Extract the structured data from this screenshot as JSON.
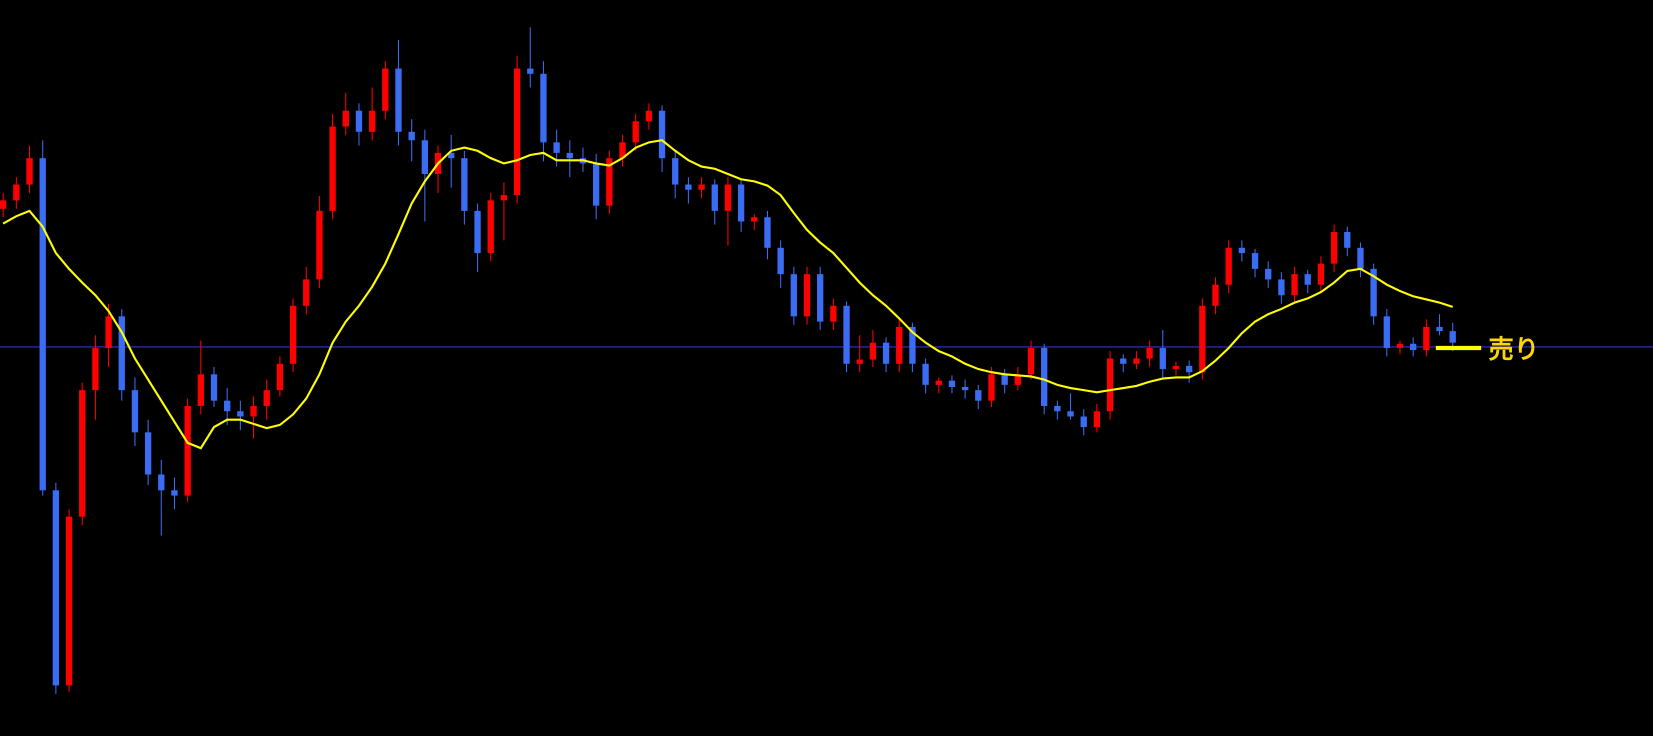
{
  "chart_data": {
    "type": "candlestick",
    "ylim": [
      0,
      698
    ],
    "up_color": "#ff0000",
    "down_color": "#3a6cf4",
    "ma_color": "#ffff00",
    "hline_color": "#3333cc",
    "hline": 369,
    "annotation": "売り",
    "ohlc": [
      [
        500,
        515,
        492,
        508
      ],
      [
        508,
        530,
        500,
        523
      ],
      [
        523,
        560,
        515,
        548
      ],
      [
        548,
        565,
        228,
        233
      ],
      [
        233,
        240,
        40,
        48
      ],
      [
        48,
        215,
        42,
        208
      ],
      [
        208,
        335,
        200,
        328
      ],
      [
        328,
        380,
        300,
        368
      ],
      [
        368,
        410,
        350,
        398
      ],
      [
        398,
        405,
        318,
        328
      ],
      [
        328,
        340,
        275,
        288
      ],
      [
        288,
        300,
        238,
        248
      ],
      [
        248,
        262,
        190,
        233
      ],
      [
        233,
        245,
        215,
        228
      ],
      [
        228,
        320,
        222,
        313
      ],
      [
        313,
        375,
        305,
        343
      ],
      [
        343,
        350,
        312,
        318
      ],
      [
        318,
        330,
        295,
        308
      ],
      [
        308,
        318,
        290,
        303
      ],
      [
        303,
        322,
        282,
        313
      ],
      [
        313,
        338,
        300,
        328
      ],
      [
        328,
        360,
        322,
        353
      ],
      [
        353,
        415,
        345,
        408
      ],
      [
        408,
        445,
        400,
        433
      ],
      [
        433,
        512,
        425,
        498
      ],
      [
        498,
        590,
        490,
        578
      ],
      [
        578,
        610,
        570,
        593
      ],
      [
        593,
        600,
        560,
        573
      ],
      [
        573,
        615,
        565,
        593
      ],
      [
        593,
        640,
        585,
        633
      ],
      [
        633,
        660,
        560,
        573
      ],
      [
        573,
        585,
        545,
        565
      ],
      [
        565,
        575,
        488,
        533
      ],
      [
        533,
        560,
        515,
        553
      ],
      [
        553,
        570,
        520,
        548
      ],
      [
        548,
        555,
        485,
        498
      ],
      [
        498,
        505,
        440,
        458
      ],
      [
        458,
        515,
        450,
        508
      ],
      [
        508,
        525,
        470,
        513
      ],
      [
        513,
        645,
        505,
        633
      ],
      [
        633,
        672,
        615,
        628
      ],
      [
        628,
        640,
        545,
        563
      ],
      [
        563,
        575,
        540,
        553
      ],
      [
        553,
        565,
        530,
        548
      ],
      [
        548,
        558,
        535,
        543
      ],
      [
        543,
        552,
        490,
        503
      ],
      [
        503,
        555,
        495,
        548
      ],
      [
        548,
        570,
        540,
        563
      ],
      [
        563,
        590,
        555,
        583
      ],
      [
        583,
        600,
        575,
        593
      ],
      [
        593,
        598,
        535,
        548
      ],
      [
        548,
        555,
        510,
        523
      ],
      [
        523,
        530,
        505,
        518
      ],
      [
        518,
        530,
        510,
        523
      ],
      [
        523,
        528,
        485,
        498
      ],
      [
        498,
        530,
        465,
        523
      ],
      [
        523,
        528,
        478,
        488
      ],
      [
        488,
        495,
        480,
        492
      ],
      [
        492,
        498,
        452,
        463
      ],
      [
        463,
        470,
        425,
        438
      ],
      [
        438,
        445,
        390,
        398
      ],
      [
        398,
        445,
        390,
        438
      ],
      [
        438,
        445,
        385,
        393
      ],
      [
        393,
        415,
        385,
        408
      ],
      [
        408,
        412,
        345,
        353
      ],
      [
        353,
        380,
        345,
        357
      ],
      [
        357,
        385,
        350,
        373
      ],
      [
        373,
        378,
        345,
        353
      ],
      [
        353,
        395,
        345,
        388
      ],
      [
        388,
        392,
        345,
        353
      ],
      [
        353,
        358,
        325,
        333
      ],
      [
        333,
        340,
        325,
        337
      ],
      [
        337,
        342,
        325,
        331
      ],
      [
        331,
        338,
        320,
        328
      ],
      [
        328,
        333,
        310,
        318
      ],
      [
        318,
        350,
        312,
        343
      ],
      [
        343,
        348,
        325,
        333
      ],
      [
        333,
        350,
        328,
        343
      ],
      [
        343,
        375,
        338,
        368
      ],
      [
        368,
        372,
        305,
        313
      ],
      [
        313,
        318,
        300,
        308
      ],
      [
        308,
        325,
        300,
        303
      ],
      [
        303,
        310,
        285,
        293
      ],
      [
        293,
        315,
        288,
        308
      ],
      [
        308,
        365,
        300,
        358
      ],
      [
        358,
        362,
        345,
        353
      ],
      [
        353,
        365,
        348,
        358
      ],
      [
        358,
        375,
        350,
        368
      ],
      [
        368,
        385,
        340,
        348
      ],
      [
        348,
        355,
        342,
        351
      ],
      [
        351,
        356,
        335,
        345
      ],
      [
        345,
        415,
        338,
        408
      ],
      [
        408,
        435,
        400,
        428
      ],
      [
        428,
        470,
        420,
        463
      ],
      [
        463,
        470,
        450,
        458
      ],
      [
        458,
        462,
        435,
        443
      ],
      [
        443,
        450,
        425,
        433
      ],
      [
        433,
        440,
        410,
        418
      ],
      [
        418,
        445,
        412,
        438
      ],
      [
        438,
        442,
        420,
        428
      ],
      [
        428,
        455,
        422,
        448
      ],
      [
        448,
        485,
        440,
        478
      ],
      [
        478,
        483,
        455,
        463
      ],
      [
        463,
        468,
        435,
        443
      ],
      [
        443,
        448,
        390,
        398
      ],
      [
        398,
        405,
        360,
        368
      ],
      [
        368,
        375,
        362,
        372
      ],
      [
        372,
        378,
        360,
        366
      ],
      [
        366,
        395,
        360,
        388
      ],
      [
        388,
        400,
        380,
        384
      ],
      [
        384,
        392,
        365,
        373
      ]
    ],
    "ma": [
      486,
      493,
      498,
      483,
      458,
      443,
      430,
      418,
      403,
      383,
      358,
      338,
      318,
      298,
      278,
      273,
      293,
      300,
      300,
      296,
      292,
      295,
      305,
      320,
      343,
      373,
      393,
      408,
      426,
      448,
      476,
      505,
      526,
      543,
      555,
      558,
      555,
      548,
      543,
      546,
      551,
      553,
      546,
      546,
      546,
      543,
      541,
      548,
      558,
      563,
      565,
      555,
      546,
      540,
      538,
      533,
      528,
      526,
      522,
      513,
      496,
      480,
      468,
      458,
      444,
      430,
      418,
      408,
      396,
      383,
      373,
      365,
      360,
      353,
      348,
      345,
      343,
      342,
      341,
      338,
      333,
      330,
      328,
      326,
      328,
      330,
      332,
      336,
      339,
      340,
      340,
      346,
      356,
      368,
      382,
      393,
      400,
      405,
      411,
      415,
      421,
      430,
      441,
      443,
      436,
      428,
      422,
      417,
      414,
      411,
      407
    ]
  }
}
